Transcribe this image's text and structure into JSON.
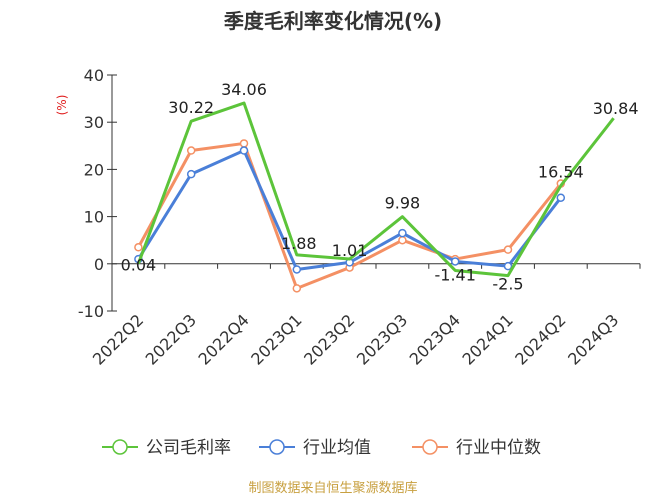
{
  "chart_data": {
    "type": "line",
    "title": "季度毛利率变化情况(%)",
    "ylabel": "(%)",
    "xlabel": "",
    "ylim": [
      -10,
      40
    ],
    "yticks": [
      -10,
      0,
      10,
      20,
      30,
      40
    ],
    "categories": [
      "2022Q2",
      "2022Q3",
      "2022Q4",
      "2023Q1",
      "2023Q2",
      "2023Q3",
      "2023Q4",
      "2024Q1",
      "2024Q2",
      "2024Q3"
    ],
    "series": [
      {
        "name": "公司毛利率",
        "color": "#5cc43a",
        "values": [
          0.04,
          30.22,
          34.06,
          1.88,
          1.01,
          9.98,
          -1.41,
          -2.5,
          16.54,
          30.84
        ],
        "labels": [
          "0.04",
          "30.22",
          "34.06",
          "1.88",
          "1.01",
          "9.98",
          "-1.41",
          "-2.5",
          "16.54",
          "30.84"
        ]
      },
      {
        "name": "行业均值",
        "color": "#4a7fd8",
        "values": [
          1.0,
          19.0,
          24.0,
          -1.2,
          0.3,
          6.5,
          0.5,
          -0.5,
          14.0,
          null
        ]
      },
      {
        "name": "行业中位数",
        "color": "#f49064",
        "values": [
          3.5,
          24.0,
          25.5,
          -5.2,
          -0.8,
          5.0,
          1.0,
          3.0,
          17.0,
          null
        ]
      }
    ],
    "grid": false,
    "legend_position": "bottom"
  },
  "source": "制图数据来自恒生聚源数据库"
}
